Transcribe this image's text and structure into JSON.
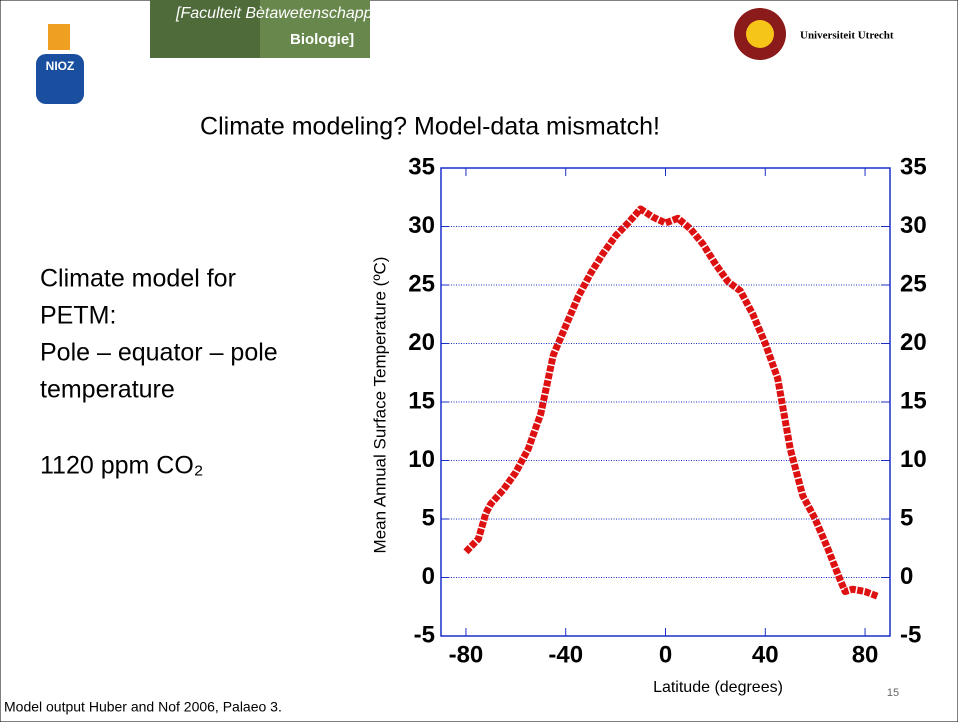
{
  "header": {
    "faculty": "[Faculteit Bètawetenschappen",
    "department": "Biologie]",
    "left_logo": "NIOZ",
    "university": "Universiteit Utrecht"
  },
  "slide": {
    "title": "Climate modeling? Model-data mismatch!",
    "body": [
      "Climate model for",
      "PETM:",
      "Pole – equator – pole",
      "temperature"
    ],
    "co2": "1120 ppm CO₂",
    "page_number": "15",
    "footer": "Model output Huber and Nof 2006, Palaeo 3."
  },
  "chart_data": {
    "type": "line",
    "x_label": "Latitude (degrees)",
    "y_label": "Mean Annual  Surface Temperature (ºC)",
    "xlim": [
      -90,
      90
    ],
    "xticks": [
      -80,
      -40,
      0,
      40,
      80
    ],
    "ylim": [
      -5,
      35
    ],
    "yticks": [
      -5,
      0,
      5,
      10,
      15,
      20,
      25,
      30,
      35
    ],
    "y2lim": [
      -5,
      35
    ],
    "y2ticks": [
      -5,
      0,
      5,
      10,
      15,
      20,
      25,
      30,
      35
    ],
    "grid": true,
    "x": [
      -80,
      -75,
      -72,
      -70,
      -65,
      -60,
      -55,
      -50,
      -45,
      -40,
      -35,
      -30,
      -25,
      -20,
      -15,
      -10,
      -5,
      0,
      5,
      10,
      15,
      20,
      25,
      30,
      35,
      40,
      45,
      50,
      55,
      60,
      65,
      70,
      72,
      75,
      80,
      85
    ],
    "series": [
      {
        "color": "#dd1111",
        "values": [
          2.2,
          3.3,
          5.5,
          6.3,
          7.5,
          9,
          11,
          14,
          19,
          21.5,
          24,
          26,
          27.7,
          29.2,
          30.3,
          31.5,
          30.8,
          30.3,
          30.7,
          29.8,
          28.5,
          26.8,
          25.3,
          24.5,
          22.5,
          20,
          17,
          11,
          7,
          5,
          2.5,
          -0.2,
          -1.2,
          -1,
          -1.2,
          -1.6
        ]
      }
    ]
  }
}
